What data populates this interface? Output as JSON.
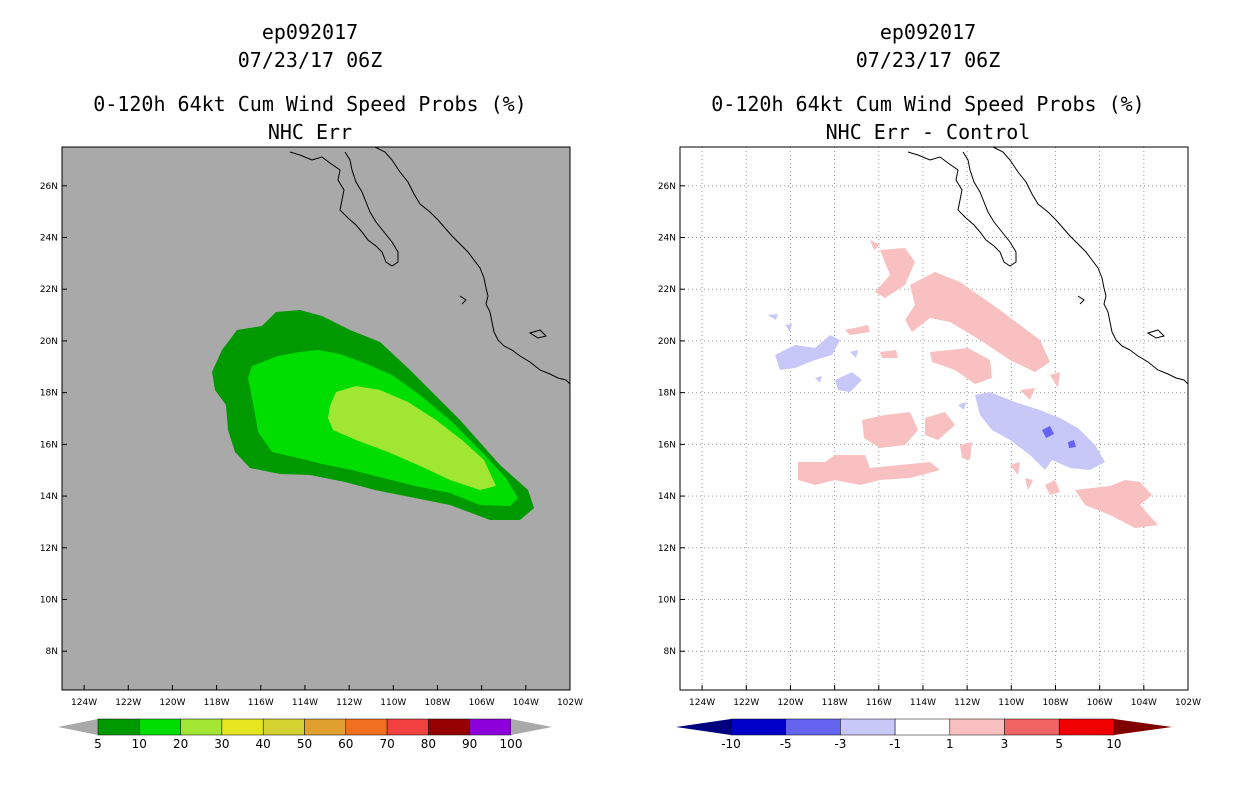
{
  "chart_data": [
    {
      "type": "heatmap",
      "title_lines": [
        "ep092017",
        "07/23/17 06Z"
      ],
      "subtitle": "0-120h 64kt Cum Wind Speed Probs (%)",
      "panel_label": "NHC Err",
      "x_ticks": [
        "124W",
        "122W",
        "120W",
        "118W",
        "116W",
        "114W",
        "112W",
        "110W",
        "108W",
        "106W",
        "104W",
        "102W"
      ],
      "y_ticks": [
        "26N",
        "24N",
        "22N",
        "20N",
        "18N",
        "16N",
        "14N",
        "12N",
        "10N",
        "8N"
      ],
      "xlim": [
        -125,
        -102
      ],
      "ylim": [
        6.5,
        27.5
      ],
      "background_color": "#a9a9a9",
      "colorbar": {
        "labels": [
          "5",
          "10",
          "20",
          "30",
          "40",
          "50",
          "60",
          "70",
          "80",
          "90",
          "100"
        ],
        "colors": [
          "#009900",
          "#00dd00",
          "#a0e632",
          "#e6e620",
          "#d2d230",
          "#e0a030",
          "#f07020",
          "#f04040",
          "#960000",
          "#8c00dc"
        ]
      },
      "contours": [
        {
          "level": 5,
          "color": "#009900"
        },
        {
          "level": 10,
          "color": "#00dd00"
        },
        {
          "level": 20,
          "color": "#a0e632"
        }
      ]
    },
    {
      "type": "heatmap",
      "title_lines": [
        "ep092017",
        "07/23/17 06Z"
      ],
      "subtitle": "0-120h 64kt Cum Wind Speed Probs (%)",
      "panel_label": "NHC Err - Control",
      "x_ticks": [
        "124W",
        "122W",
        "120W",
        "118W",
        "116W",
        "114W",
        "112W",
        "110W",
        "108W",
        "106W",
        "104W",
        "102W"
      ],
      "y_ticks": [
        "26N",
        "24N",
        "22N",
        "20N",
        "18N",
        "16N",
        "14N",
        "12N",
        "10N",
        "8N"
      ],
      "xlim": [
        -125,
        -102
      ],
      "ylim": [
        6.5,
        27.5
      ],
      "background_color": "#ffffff",
      "grid": true,
      "colorbar": {
        "labels": [
          "-10",
          "-5",
          "-3",
          "-1",
          "1",
          "3",
          "5",
          "10"
        ],
        "colors": [
          "#0000c8",
          "#6464f0",
          "#c8c8f8",
          "#ffffff",
          "#f8c0c0",
          "#f06464",
          "#f00000"
        ],
        "left_arrow_color": "#000080",
        "right_arrow_color": "#800000"
      },
      "contours": [
        {
          "level": "1 to 3",
          "color": "#f8c0c0"
        },
        {
          "level": "-3 to -1",
          "color": "#c8c8f8"
        },
        {
          "level": "-5 to -3",
          "color": "#6464f0"
        }
      ]
    }
  ]
}
